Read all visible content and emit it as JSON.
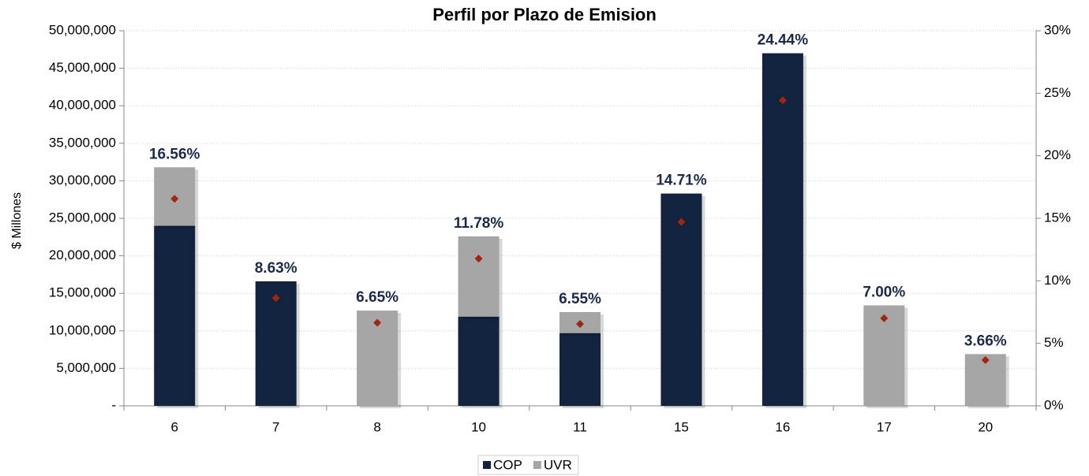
{
  "chart_data": {
    "type": "stacked_bar",
    "title": "Perfil por Plazo de Emision",
    "ylabel": "$ Millones",
    "categories": [
      "6",
      "7",
      "8",
      "10",
      "11",
      "15",
      "16",
      "17",
      "20"
    ],
    "series": [
      {
        "name": "COP",
        "color": "#12233f",
        "values": [
          24000000,
          16600000,
          0,
          11900000,
          9700000,
          28300000,
          47000000,
          0,
          0
        ]
      },
      {
        "name": "UVR",
        "color": "#a6a6a6",
        "values": [
          7800000,
          0,
          12700000,
          10700000,
          2800000,
          0,
          0,
          13400000,
          6900000
        ]
      },
      {
        "color": "#a0260e",
        "axis": "y2",
        "marker": "diamond",
        "values": [
          16.56,
          8.63,
          6.65,
          11.78,
          6.55,
          14.71,
          24.44,
          7.0,
          3.66
        ],
        "value_labels": [
          "16.56%",
          "8.63%",
          "6.65%",
          "11.78%",
          "6.55%",
          "14.71%",
          "24.44%",
          "7.00%",
          "3.66%"
        ]
      }
    ],
    "ylim": [
      0,
      50000000
    ],
    "yticks": [
      {
        "value": 0,
        "label": "-"
      },
      {
        "value": 5000000,
        "label": "5,000,000"
      },
      {
        "value": 10000000,
        "label": "10,000,000"
      },
      {
        "value": 15000000,
        "label": "15,000,000"
      },
      {
        "value": 20000000,
        "label": "20,000,000"
      },
      {
        "value": 25000000,
        "label": "25,000,000"
      },
      {
        "value": 30000000,
        "label": "30,000,000"
      },
      {
        "value": 35000000,
        "label": "35,000,000"
      },
      {
        "value": 40000000,
        "label": "40,000,000"
      },
      {
        "value": 45000000,
        "label": "45,000,000"
      },
      {
        "value": 50000000,
        "label": "50,000,000"
      }
    ],
    "y2lim": [
      0,
      30
    ],
    "y2ticks": [
      {
        "value": 0,
        "label": "0%"
      },
      {
        "value": 5,
        "label": "5%"
      },
      {
        "value": 10,
        "label": "10%"
      },
      {
        "value": 15,
        "label": "15%"
      },
      {
        "value": 20,
        "label": "20%"
      },
      {
        "value": 25,
        "label": "25%"
      },
      {
        "value": 30,
        "label": "30%"
      }
    ],
    "grid": true,
    "legend": "bottom"
  }
}
